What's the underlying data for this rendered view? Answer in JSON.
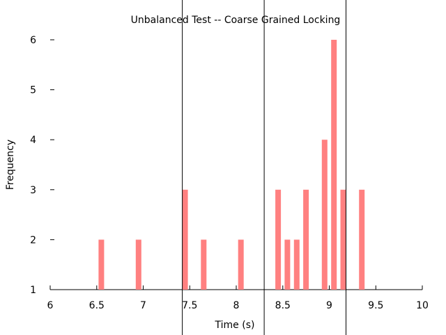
{
  "chart_data": {
    "type": "bar",
    "title": "Unbalanced Test -- Coarse Grained Locking",
    "xlabel": "Time (s)",
    "ylabel": "Frequency",
    "xlim": [
      6,
      10
    ],
    "ylim": [
      1,
      6
    ],
    "xticks": [
      6,
      6.5,
      7,
      7.5,
      8,
      8.5,
      9,
      9.5,
      10
    ],
    "xtick_labels": [
      "6",
      "6.5",
      "7",
      "7.5",
      "8",
      "8.5",
      "9",
      "9.5",
      "10"
    ],
    "yticks": [
      1,
      2,
      3,
      4,
      5,
      6
    ],
    "ytick_labels": [
      "1",
      "2",
      "3",
      "4",
      "5",
      "6"
    ],
    "grid": false,
    "bar_color": "#ff8080",
    "vline_color": "#000000",
    "bars": [
      {
        "x": 6.55,
        "y": 2
      },
      {
        "x": 6.95,
        "y": 2
      },
      {
        "x": 7.45,
        "y": 3
      },
      {
        "x": 7.65,
        "y": 2
      },
      {
        "x": 8.05,
        "y": 2
      },
      {
        "x": 8.45,
        "y": 3
      },
      {
        "x": 8.55,
        "y": 2
      },
      {
        "x": 8.65,
        "y": 2
      },
      {
        "x": 8.75,
        "y": 3
      },
      {
        "x": 8.95,
        "y": 4
      },
      {
        "x": 9.05,
        "y": 6
      },
      {
        "x": 9.15,
        "y": 3
      },
      {
        "x": 9.35,
        "y": 3
      }
    ],
    "vertical_lines": [
      7.42,
      8.3,
      9.18
    ]
  }
}
